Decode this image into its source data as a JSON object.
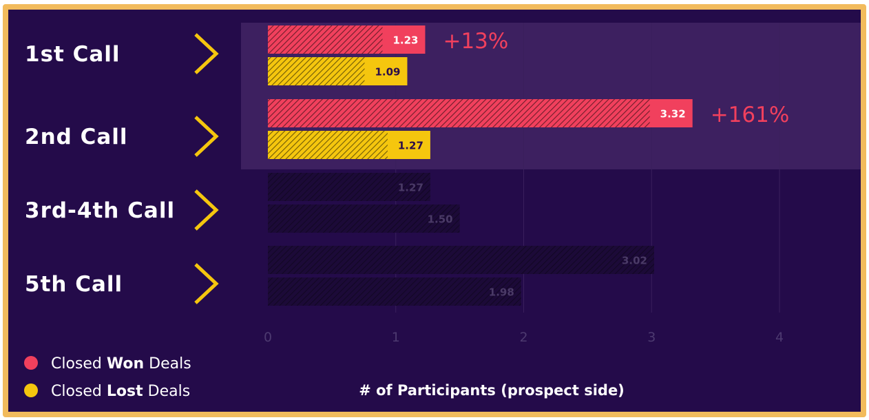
{
  "chart_data": {
    "type": "bar",
    "orientation": "horizontal",
    "categories": [
      "1st Call",
      "2nd Call",
      "3rd-4th Call",
      "5th Call"
    ],
    "series": [
      {
        "name": "Closed Won Deals",
        "color": "#f1405d",
        "values": [
          1.23,
          3.32,
          1.27,
          3.02
        ],
        "value_labels": [
          "1.23",
          "3.32",
          "1.27",
          "3.02"
        ]
      },
      {
        "name": "Closed Lost Deals",
        "color": "#f5c60e",
        "values": [
          1.09,
          1.27,
          1.5,
          1.98
        ],
        "value_labels": [
          "1.09",
          "1.27",
          "1.50",
          "1.98"
        ]
      }
    ],
    "highlighted_categories": [
      "1st Call",
      "2nd Call"
    ],
    "annotations": [
      {
        "category": "1st Call",
        "text": "+13%"
      },
      {
        "category": "2nd Call",
        "text": "+161%"
      }
    ],
    "xlim": [
      0,
      4
    ],
    "xticks": [
      "0",
      "1",
      "2",
      "3",
      "4"
    ],
    "xlabel": "# of Participants (prospect side)",
    "grid": true,
    "legend_position": "bottom-left"
  },
  "legend": {
    "won": {
      "prefix": "Closed ",
      "bold": "Won",
      "suffix": " Deals"
    },
    "lost": {
      "prefix": "Closed ",
      "bold": "Lost",
      "suffix": " Deals"
    }
  },
  "colors": {
    "background": "#240b4a",
    "frame": "#f2bb5c",
    "highlight_band": "#3d2060",
    "chevron": "#f5c60e",
    "won": "#f1405d",
    "lost": "#f5c60e"
  },
  "icons": {
    "row_marker": "chevron-right-icon"
  }
}
